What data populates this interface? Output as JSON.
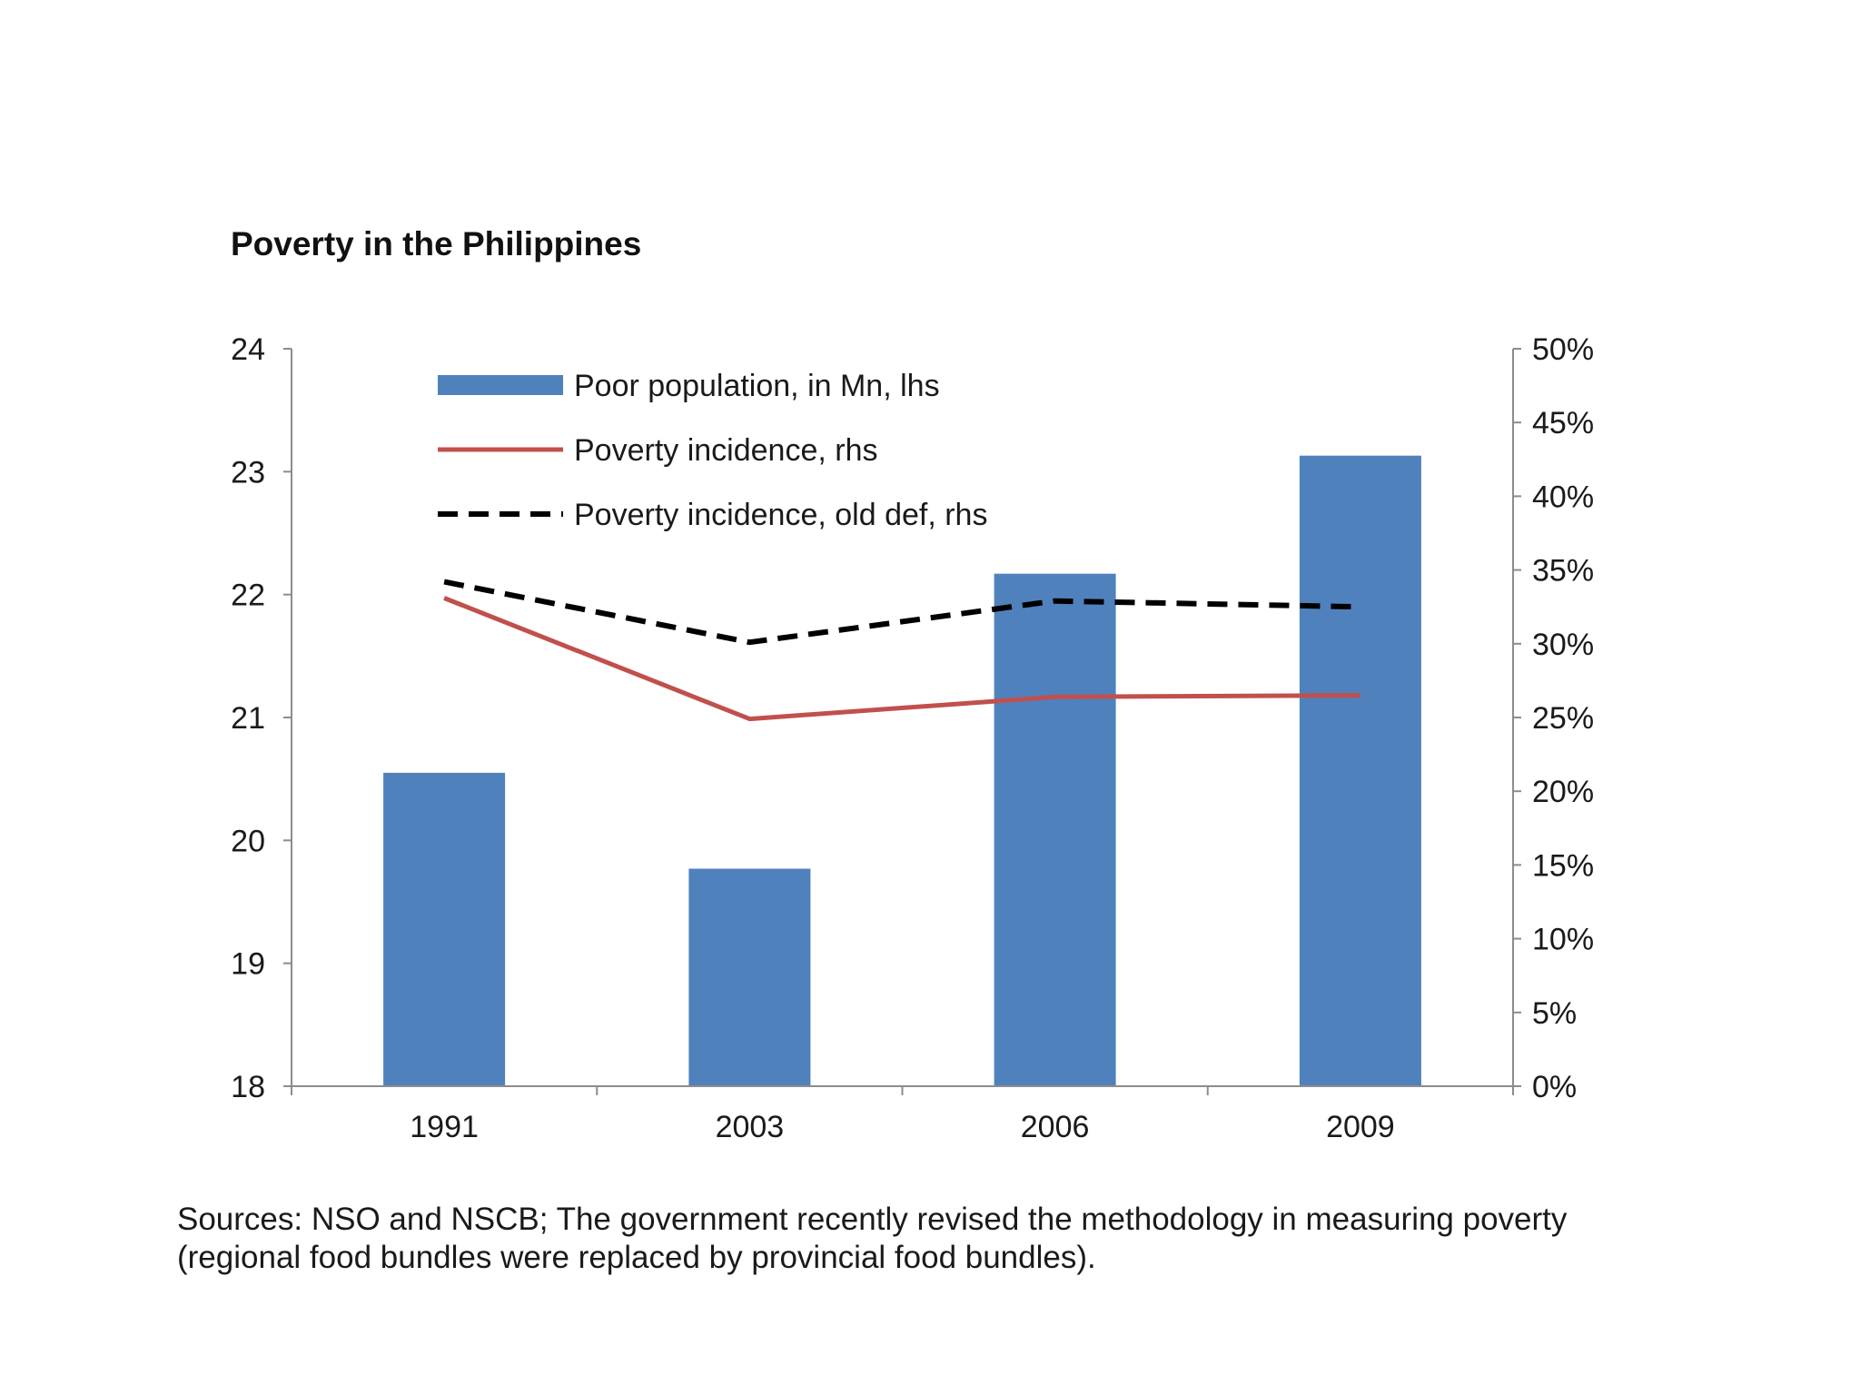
{
  "chart_data": {
    "type": "bar",
    "title": "Poverty in the Philippines",
    "categories": [
      "1991",
      "2003",
      "2006",
      "2009"
    ],
    "series": [
      {
        "name": "Poor population, in Mn, lhs",
        "type": "bar",
        "axis": "left",
        "color": "#4F81BD",
        "values": [
          20.55,
          19.77,
          22.17,
          23.13
        ]
      },
      {
        "name": "Poverty incidence, rhs",
        "type": "line",
        "axis": "right",
        "color": "#C0504D",
        "values": [
          33.1,
          24.9,
          26.4,
          26.5
        ]
      },
      {
        "name": "Poverty incidence, old def, rhs",
        "type": "line-dashed",
        "axis": "right",
        "color": "#000000",
        "values": [
          34.2,
          30.1,
          32.9,
          32.5
        ]
      }
    ],
    "y_left": {
      "ylim": [
        18,
        24
      ],
      "ticks": [
        "24",
        "23",
        "22",
        "21",
        "20",
        "19",
        "18"
      ]
    },
    "y_right": {
      "ylim": [
        0,
        50
      ],
      "ticks": [
        "50%",
        "45%",
        "40%",
        "35%",
        "30%",
        "25%",
        "20%",
        "15%",
        "10%",
        "5%",
        "0%"
      ]
    },
    "grid": false,
    "legend_position": "top-left"
  },
  "footnote": "Sources: NSO and NSCB; The government recently revised the methodology in measuring poverty (regional food bundles were replaced by provincial food bundles)."
}
